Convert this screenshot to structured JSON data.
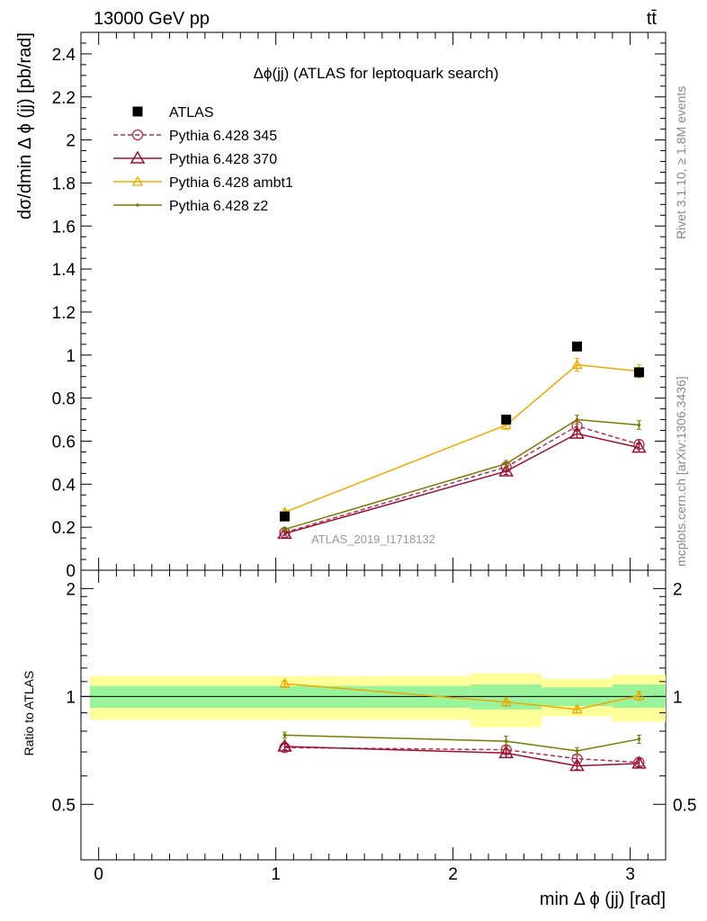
{
  "header": {
    "energy_label": "13000 GeV pp",
    "process_label": "tt̄",
    "title": "Δϕ(jj) (ATLAS for leptoquark search)",
    "analysis_id": "ATLAS_2019_I1718132",
    "side_top": "Rivet 3.1.10, ≥ 1.8M events",
    "side_bottom": "mcplots.cern.ch [arXiv:1306.3436]"
  },
  "chart_data": [
    {
      "type": "line",
      "xlabel": "min Δ ϕ (jj) [rad]",
      "ylabel": "dσ/dmin Δ ϕ (jj) [pb/rad]",
      "xlim": [
        -0.1,
        3.2
      ],
      "ylim": [
        0,
        2.5
      ],
      "yticks": [
        "0",
        "0.2",
        "0.4",
        "0.6",
        "0.8",
        "1",
        "1.2",
        "1.4",
        "1.6",
        "1.8",
        "2",
        "2.2",
        "2.4"
      ],
      "x": [
        1.05,
        2.3,
        2.7,
        3.05
      ],
      "series": [
        {
          "name": "ATLAS",
          "color": "#000000",
          "marker": "square",
          "values": [
            0.25,
            0.7,
            1.04,
            0.92
          ]
        },
        {
          "name": "Pythia 6.428 345",
          "color": "#b03050",
          "marker": "circle",
          "dashed": true,
          "values": [
            0.175,
            0.48,
            0.67,
            0.585
          ],
          "errors": [
            0.008,
            0.015,
            0.02,
            0.02
          ]
        },
        {
          "name": "Pythia 6.428 370",
          "color": "#9b1030",
          "marker": "triangle",
          "values": [
            0.17,
            0.46,
            0.635,
            0.57
          ],
          "errors": [
            0.008,
            0.015,
            0.02,
            0.02
          ]
        },
        {
          "name": "Pythia 6.428 ambt1",
          "color": "#f0a800",
          "marker": "triangle-small",
          "values": [
            0.27,
            0.675,
            0.955,
            0.925
          ],
          "errors": [
            0.01,
            0.02,
            0.03,
            0.03
          ]
        },
        {
          "name": "Pythia 6.428 z2",
          "color": "#7a7a00",
          "marker": "dot",
          "values": [
            0.19,
            0.495,
            0.7,
            0.675
          ],
          "errors": [
            0.008,
            0.015,
            0.02,
            0.02
          ]
        }
      ]
    },
    {
      "type": "line",
      "xlabel": "min Δ ϕ (jj) [rad]",
      "ylabel": "Ratio to ATLAS",
      "xlim": [
        -0.1,
        3.2
      ],
      "ylim": [
        0.35,
        2.25
      ],
      "xticks": [
        "0",
        "1",
        "2",
        "3"
      ],
      "yticks": [
        "0.5",
        "1",
        "2"
      ],
      "bins": [
        {
          "lo": -0.05,
          "hi": 2.1,
          "inner": [
            0.93,
            1.07
          ],
          "outer": [
            0.86,
            1.14
          ]
        },
        {
          "lo": 2.1,
          "hi": 2.5,
          "inner": [
            0.92,
            1.08
          ],
          "outer": [
            0.82,
            1.16
          ]
        },
        {
          "lo": 2.5,
          "hi": 2.9,
          "inner": [
            0.94,
            1.06
          ],
          "outer": [
            0.88,
            1.12
          ]
        },
        {
          "lo": 2.9,
          "hi": 3.2,
          "inner": [
            0.93,
            1.08
          ],
          "outer": [
            0.85,
            1.15
          ]
        }
      ],
      "x": [
        1.05,
        2.3,
        2.7,
        3.05
      ],
      "series": [
        {
          "name": "Pythia 6.428 345",
          "values": [
            0.72,
            0.71,
            0.67,
            0.655
          ],
          "errors": [
            0.015,
            0.02,
            0.015,
            0.015
          ]
        },
        {
          "name": "Pythia 6.428 370",
          "values": [
            0.725,
            0.695,
            0.64,
            0.65
          ],
          "errors": [
            0.015,
            0.02,
            0.015,
            0.015
          ]
        },
        {
          "name": "Pythia 6.428 ambt1",
          "values": [
            1.085,
            0.965,
            0.92,
            1.005
          ],
          "errors": [
            0.02,
            0.025,
            0.02,
            0.03
          ]
        },
        {
          "name": "Pythia 6.428 z2",
          "values": [
            0.78,
            0.75,
            0.705,
            0.76
          ],
          "errors": [
            0.015,
            0.025,
            0.015,
            0.02
          ]
        }
      ]
    }
  ]
}
